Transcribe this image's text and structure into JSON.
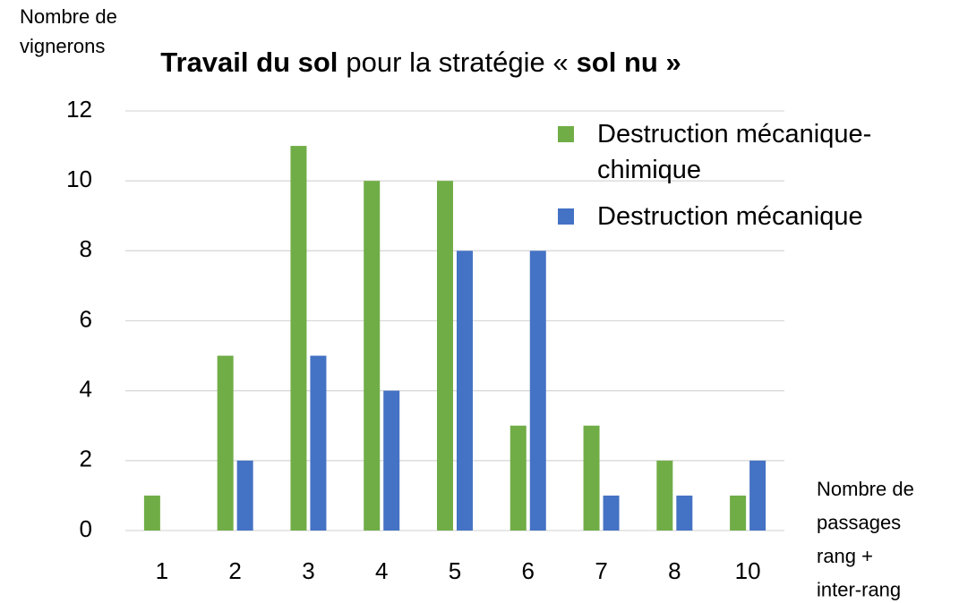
{
  "chart_data": {
    "type": "bar",
    "title": [
      {
        "text": "Travail du sol",
        "bold": true
      },
      {
        "text": "pour la stratégie «",
        "bold": false
      },
      {
        "text": "sol nu »",
        "bold": true
      }
    ],
    "y_label": [
      "Nombre de",
      "vignerons"
    ],
    "x_label": [
      "Nombre de",
      "passages",
      "rang +",
      "inter-rang"
    ],
    "categories": [
      "1",
      "2",
      "3",
      "4",
      "5",
      "6",
      "7",
      "8",
      "10"
    ],
    "series": [
      {
        "name": "Destruction mécanique-chimique",
        "color": "#70ad47",
        "values": [
          1,
          5,
          11,
          10,
          10,
          3,
          3,
          2,
          1
        ]
      },
      {
        "name": "Destruction mécanique",
        "color": "#4472c4",
        "values": [
          0,
          2,
          5,
          4,
          8,
          8,
          1,
          1,
          2
        ]
      }
    ],
    "ylim": [
      0,
      12
    ],
    "yticks": [
      0,
      2,
      4,
      6,
      8,
      10,
      12
    ],
    "grid": true,
    "legend": "upper right"
  }
}
